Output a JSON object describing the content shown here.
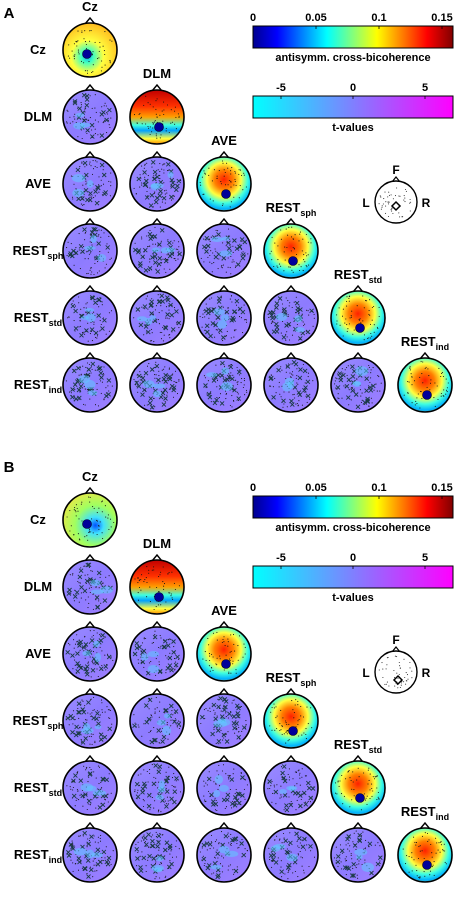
{
  "panels": [
    {
      "id": "A",
      "label": "A",
      "conditions": [
        {
          "base": "Cz",
          "sub": ""
        },
        {
          "base": "DLM",
          "sub": ""
        },
        {
          "base": "AVE",
          "sub": ""
        },
        {
          "base": "REST",
          "sub": "sph"
        },
        {
          "base": "REST",
          "sub": "std"
        },
        {
          "base": "REST",
          "sub": "ind"
        }
      ],
      "colorbar_top": {
        "ticks": [
          "0",
          "0.05",
          "0.1",
          "0.15"
        ],
        "label": "antisymm. cross-bicoherence"
      },
      "colorbar_bottom": {
        "ticks": [
          "-5",
          "0",
          "5"
        ],
        "label": "t-values"
      },
      "orientation": {
        "front": "F",
        "left": "L",
        "right": "R"
      }
    },
    {
      "id": "B",
      "label": "B",
      "conditions": [
        {
          "base": "Cz",
          "sub": ""
        },
        {
          "base": "DLM",
          "sub": ""
        },
        {
          "base": "AVE",
          "sub": ""
        },
        {
          "base": "REST",
          "sub": "sph"
        },
        {
          "base": "REST",
          "sub": "std"
        },
        {
          "base": "REST",
          "sub": "ind"
        }
      ],
      "colorbar_top": {
        "ticks": [
          "0",
          "0.05",
          "0.1",
          "0.15"
        ],
        "label": "antisymm. cross-bicoherence"
      },
      "colorbar_bottom": {
        "ticks": [
          "-5",
          "0",
          "5"
        ],
        "label": "t-values"
      },
      "orientation": {
        "front": "F",
        "left": "L",
        "right": "R"
      }
    }
  ],
  "colors": {
    "jet": [
      "#00008f",
      "#0000ff",
      "#00ffff",
      "#ffff00",
      "#ff0000",
      "#800000"
    ],
    "cool": [
      "#00ffff",
      "#ff00ff"
    ]
  }
}
